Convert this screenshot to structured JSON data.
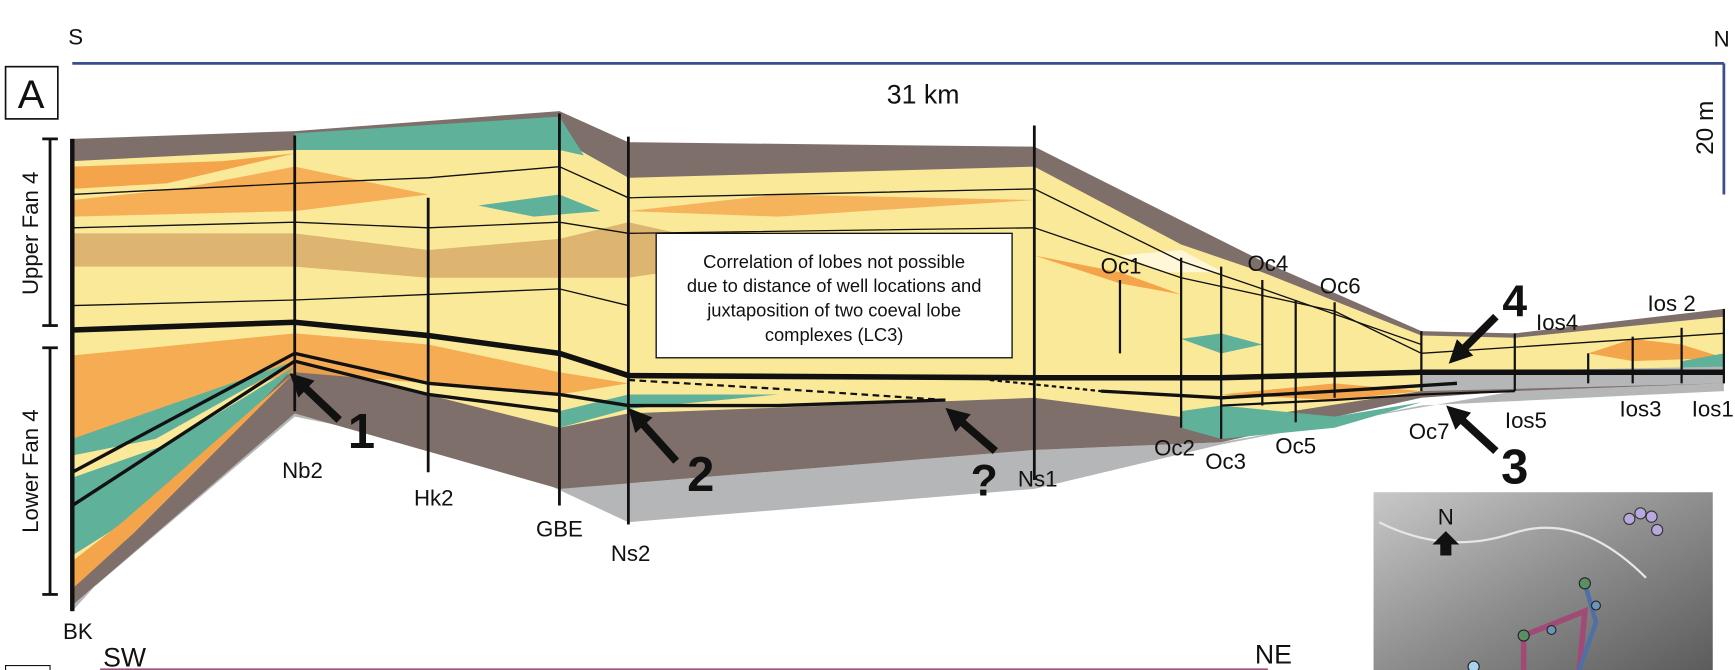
{
  "header": {
    "south": "S",
    "north": "N",
    "panel": "A",
    "distance": "31 km",
    "thickness": "20 m"
  },
  "fans": {
    "upper": "Upper Fan 4",
    "lower": "Lower Fan 4"
  },
  "wells": [
    "BK",
    "Nb2",
    "Hk2",
    "GBE",
    "Ns2",
    "Ns1",
    "Oc1",
    "Oc2",
    "Oc3",
    "Oc4",
    "Oc5",
    "Oc6",
    "Oc7",
    "Ios5",
    "Ios4",
    "Ios3",
    "Ios 2",
    "Ios1"
  ],
  "note": [
    "Correlation of lobes not possible",
    "due to distance of well locations and",
    "juxtaposition of two coeval lobe",
    "complexes (LC3)"
  ],
  "markers": [
    "1",
    "2",
    "?",
    "3",
    "4"
  ],
  "bottom": {
    "southwest": "SW",
    "northeast": "NE"
  },
  "map": {
    "north": "N"
  }
}
